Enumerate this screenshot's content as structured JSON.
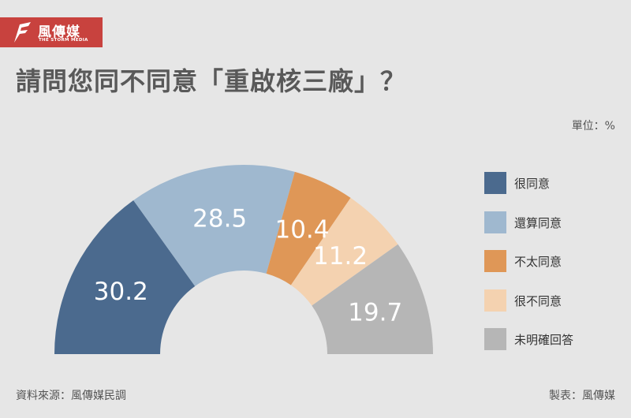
{
  "header": {
    "logo_name": "風傳媒",
    "logo_sub": "THE STORM MEDIA",
    "logo_color": "#c8423e"
  },
  "title": "請問您同不同意「重啟核三廠」？",
  "unit": "單位：%",
  "footer": {
    "source": "資料來源：風傳媒民調",
    "credit": "製表：風傳媒"
  },
  "chart_data": {
    "type": "pie",
    "variant": "half-donut",
    "title": "請問您同不同意「重啟核三廠」？",
    "unit": "%",
    "legend_position": "right",
    "series": [
      {
        "name": "很同意",
        "value": 30.2,
        "color": "#4b6a8e"
      },
      {
        "name": "還算同意",
        "value": 28.5,
        "color": "#9fb8cf"
      },
      {
        "name": "不太同意",
        "value": 10.4,
        "color": "#df9757"
      },
      {
        "name": "很不同意",
        "value": 11.2,
        "color": "#f4d2b0"
      },
      {
        "name": "未明確回答",
        "value": 19.7,
        "color": "#b6b6b6"
      }
    ]
  }
}
